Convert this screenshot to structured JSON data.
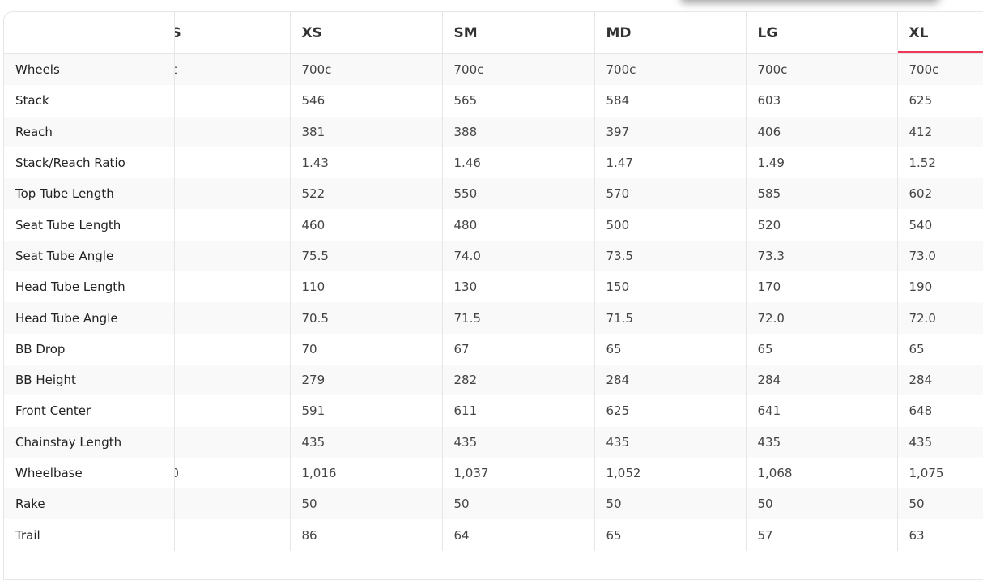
{
  "accent": "#f0395a",
  "columns": {
    "hidden_fragment": "S",
    "sizes": [
      "XS",
      "SM",
      "MD",
      "LG",
      "XL"
    ],
    "active": "XL"
  },
  "rows": [
    {
      "label": "Wheels",
      "fragment": "c",
      "values": [
        "700c",
        "700c",
        "700c",
        "700c",
        "700c"
      ]
    },
    {
      "label": "Stack",
      "fragment": "",
      "values": [
        "546",
        "565",
        "584",
        "603",
        "625"
      ]
    },
    {
      "label": "Reach",
      "fragment": "",
      "values": [
        "381",
        "388",
        "397",
        "406",
        "412"
      ]
    },
    {
      "label": "Stack/Reach Ratio",
      "fragment": "",
      "values": [
        "1.43",
        "1.46",
        "1.47",
        "1.49",
        "1.52"
      ]
    },
    {
      "label": "Top Tube Length",
      "fragment": "",
      "values": [
        "522",
        "550",
        "570",
        "585",
        "602"
      ]
    },
    {
      "label": "Seat Tube Length",
      "fragment": "",
      "values": [
        "460",
        "480",
        "500",
        "520",
        "540"
      ]
    },
    {
      "label": "Seat Tube Angle",
      "fragment": "",
      "values": [
        "75.5",
        "74.0",
        "73.5",
        "73.3",
        "73.0"
      ]
    },
    {
      "label": "Head Tube Length",
      "fragment": "",
      "values": [
        "110",
        "130",
        "150",
        "170",
        "190"
      ]
    },
    {
      "label": "Head Tube Angle",
      "fragment": ")",
      "values": [
        "70.5",
        "71.5",
        "71.5",
        "72.0",
        "72.0"
      ]
    },
    {
      "label": "BB Drop",
      "fragment": "",
      "values": [
        "70",
        "67",
        "65",
        "65",
        "65"
      ]
    },
    {
      "label": "BB Height",
      "fragment": "",
      "values": [
        "279",
        "282",
        "284",
        "284",
        "284"
      ]
    },
    {
      "label": "Front Center",
      "fragment": "",
      "values": [
        "591",
        "611",
        "625",
        "641",
        "648"
      ]
    },
    {
      "label": "Chainstay Length",
      "fragment": "",
      "values": [
        "435",
        "435",
        "435",
        "435",
        "435"
      ]
    },
    {
      "label": "Wheelbase",
      "fragment": "0",
      "values": [
        "1,016",
        "1,037",
        "1,052",
        "1,068",
        "1,075"
      ]
    },
    {
      "label": "Rake",
      "fragment": "",
      "values": [
        "50",
        "50",
        "50",
        "50",
        "50"
      ]
    },
    {
      "label": "Trail",
      "fragment": "",
      "values": [
        "86",
        "64",
        "65",
        "57",
        "63"
      ]
    }
  ]
}
